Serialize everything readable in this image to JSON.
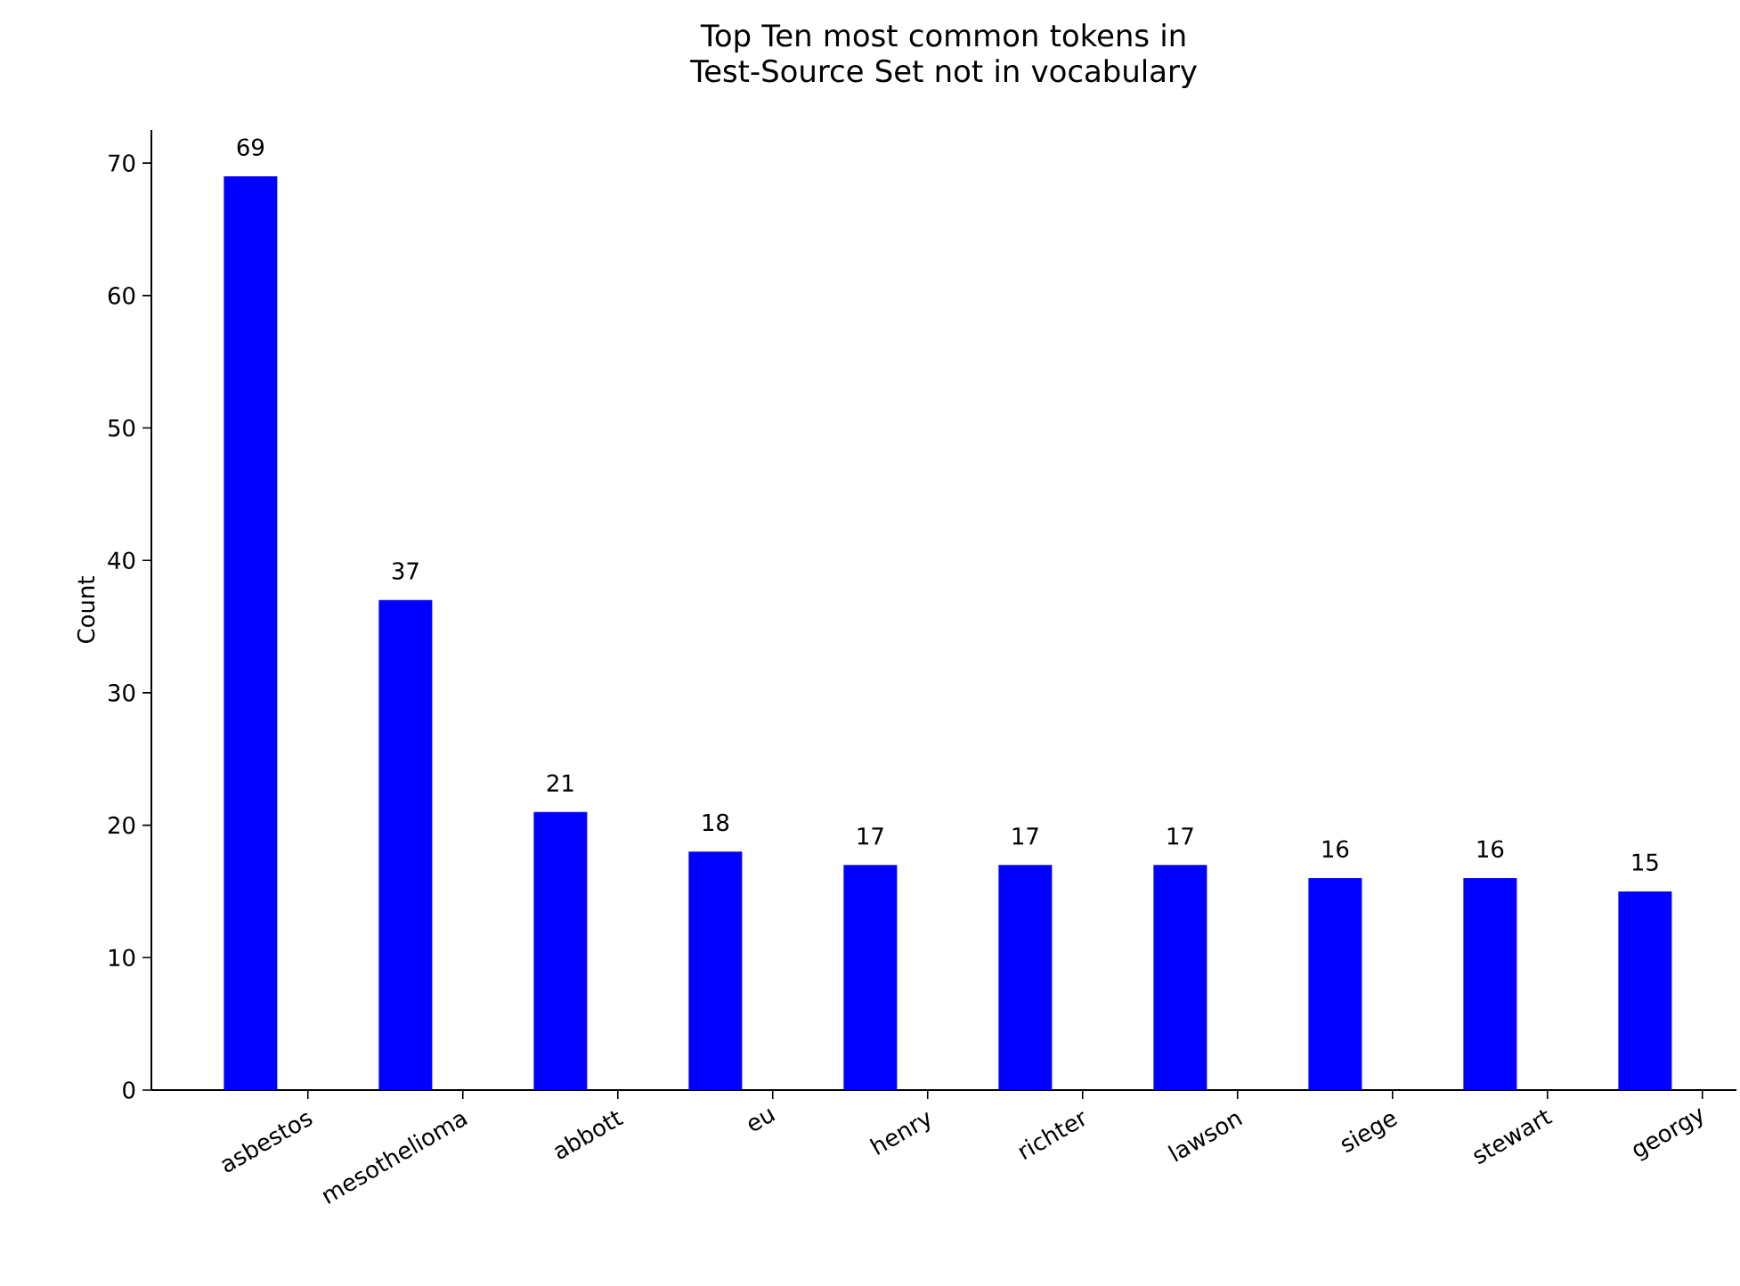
{
  "chart_data": {
    "type": "bar",
    "title": "Top Ten most common tokens in Test-Source Set not in vocabulary",
    "ylabel": "Count",
    "categories": [
      "asbestos",
      "mesothelioma",
      "abbott",
      "eu",
      "henry",
      "richter",
      "lawson",
      "siege",
      "stewart",
      "georgy"
    ],
    "values": [
      69,
      37,
      21,
      18,
      17,
      17,
      17,
      16,
      16,
      15
    ],
    "color": "#0000ff",
    "ylim": [
      0,
      72.5
    ],
    "yticks": [
      0,
      10,
      20,
      30,
      40,
      50,
      60,
      70
    ],
    "data_labels": true
  }
}
